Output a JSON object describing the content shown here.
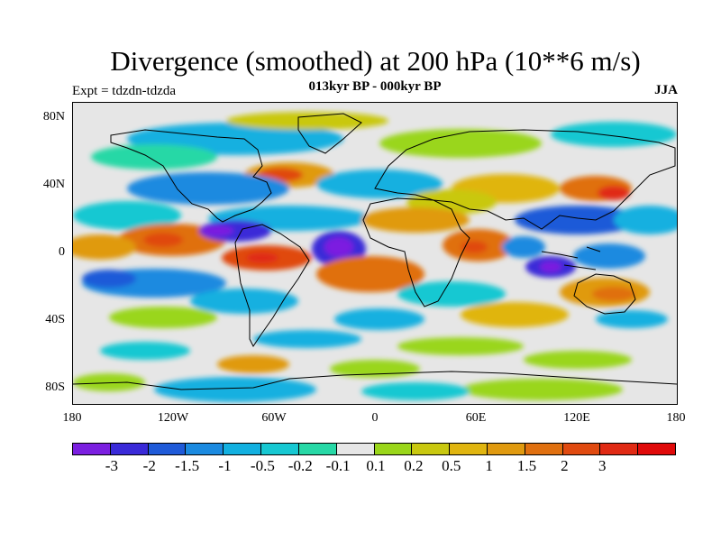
{
  "title": "Divergence (smoothed) at 200 hPa (10**6 m/s)",
  "subtitle": "013kyr BP - 000kyr BP",
  "experiment": "Expt = tdzdn-tdzda",
  "season": "JJA",
  "lat_labels": [
    "80N",
    "40N",
    "0",
    "40S",
    "80S"
  ],
  "lon_labels": [
    "180",
    "120W",
    "60W",
    "0",
    "60E",
    "120E",
    "180"
  ],
  "colorbar": {
    "colors": [
      "#7b1fe0",
      "#3a2ad8",
      "#1f5ad8",
      "#1b8ae0",
      "#12b0e0",
      "#17c8d2",
      "#27d8a6",
      "#e6e6e6",
      "#9ad61a",
      "#c9c810",
      "#e0b510",
      "#e09a10",
      "#e07010",
      "#e04a10",
      "#e02a14",
      "#e00a0a"
    ],
    "labels": [
      "-3",
      "-2",
      "-1.5",
      "-1",
      "-0.5",
      "-0.2",
      "-0.1",
      "0.1",
      "0.2",
      "0.5",
      "1",
      "1.5",
      "2",
      "3"
    ]
  }
}
